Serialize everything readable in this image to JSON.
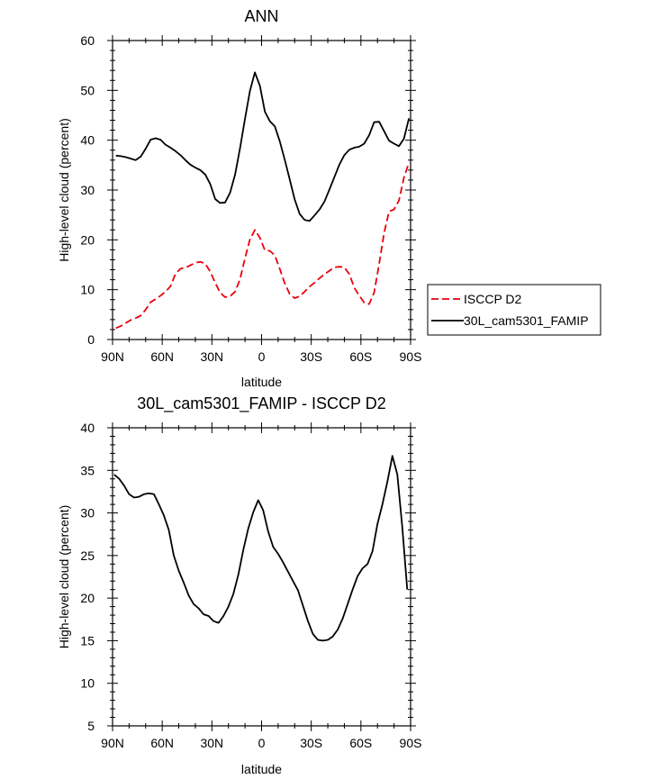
{
  "chart_data": [
    {
      "type": "line",
      "title": "ANN",
      "xlabel": "latitude",
      "ylabel": "High-level cloud (percent)",
      "xlim": [
        90,
        -90
      ],
      "ylim": [
        0,
        60
      ],
      "xticks": [
        90,
        60,
        30,
        0,
        -30,
        -60,
        -90
      ],
      "xtick_labels": [
        "90N",
        "60N",
        "30N",
        "0",
        "30S",
        "60S",
        "90S"
      ],
      "yticks": [
        0,
        10,
        20,
        30,
        40,
        50,
        60
      ],
      "ytick_labels": [
        "0",
        "10",
        "20",
        "30",
        "40",
        "50",
        "60"
      ],
      "legend": {
        "position": "right",
        "entries": [
          "ISCCP D2",
          "30L_cam5301_FAMIP"
        ]
      },
      "series": [
        {
          "name": "ISCCP D2",
          "color": "#e8000b",
          "style": "dashed",
          "x": [
            88,
            85,
            82,
            79,
            76,
            73,
            70,
            67,
            64,
            61,
            58,
            55,
            52,
            49,
            46,
            43,
            40,
            37,
            34,
            31,
            28,
            25,
            22,
            19,
            16,
            13,
            10,
            7,
            4,
            1,
            -2,
            -5,
            -8,
            -11,
            -14,
            -17,
            -20,
            -23,
            -26,
            -29,
            -32,
            -35,
            -38,
            -41,
            -44,
            -47,
            -50,
            -53,
            -56,
            -59,
            -62,
            -65,
            -68,
            -71,
            -74,
            -77,
            -80,
            -83,
            -86,
            -89
          ],
          "y": [
            2.3,
            2.7,
            3.3,
            3.9,
            4.3,
            4.8,
            6.0,
            7.5,
            8.1,
            8.8,
            9.6,
            10.7,
            13.2,
            14.2,
            14.4,
            14.9,
            15.4,
            15.6,
            15.2,
            13.6,
            11.4,
            9.4,
            8.5,
            8.7,
            9.6,
            12.1,
            16.3,
            20.1,
            22.0,
            20.4,
            17.9,
            17.8,
            16.9,
            14.2,
            11.3,
            9.1,
            8.3,
            8.7,
            9.6,
            10.6,
            11.4,
            12.3,
            13.1,
            13.8,
            14.5,
            14.6,
            14.5,
            13.1,
            10.4,
            8.8,
            7.4,
            7.1,
            9.4,
            15.2,
            21.4,
            25.7,
            26.1,
            27.9,
            32.5,
            35.5
          ]
        },
        {
          "name": "30L_cam5301_FAMIP",
          "color": "#000000",
          "style": "solid",
          "x": [
            88,
            85,
            82,
            79,
            76,
            73,
            70,
            67,
            64,
            61,
            58,
            55,
            52,
            49,
            46,
            43,
            40,
            37,
            34,
            31,
            28,
            25,
            22,
            19,
            16,
            13,
            10,
            7,
            4,
            1,
            -2,
            -5,
            -8,
            -11,
            -14,
            -17,
            -20,
            -23,
            -26,
            -29,
            -32,
            -35,
            -38,
            -41,
            -44,
            -47,
            -50,
            -53,
            -56,
            -59,
            -62,
            -65,
            -68,
            -71,
            -74,
            -77,
            -80,
            -83,
            -86,
            -89
          ],
          "y": [
            36.9,
            36.8,
            36.6,
            36.3,
            36.0,
            36.7,
            38.3,
            40.1,
            40.4,
            40.1,
            39.1,
            38.5,
            37.8,
            37.0,
            36.0,
            35.1,
            34.5,
            34.0,
            33.1,
            31.2,
            28.2,
            27.4,
            27.5,
            29.5,
            33.1,
            38.4,
            44.3,
            49.9,
            53.6,
            50.9,
            45.7,
            43.8,
            42.8,
            39.8,
            36.1,
            32.1,
            28.1,
            25.2,
            24.0,
            23.8,
            24.9,
            26.1,
            27.7,
            30.1,
            32.6,
            35.1,
            37.0,
            38.1,
            38.5,
            38.7,
            39.3,
            41.0,
            43.6,
            43.7,
            41.8,
            39.9,
            39.3,
            38.8,
            40.3,
            44.4
          ]
        }
      ]
    },
    {
      "type": "line",
      "title": "30L_cam5301_FAMIP - ISCCP D2",
      "xlabel": "latitude",
      "ylabel": "High-level cloud (percent)",
      "xlim": [
        90,
        -90
      ],
      "ylim": [
        5,
        40
      ],
      "xticks": [
        90,
        60,
        30,
        0,
        -30,
        -60,
        -90
      ],
      "xtick_labels": [
        "90N",
        "60N",
        "30N",
        "0",
        "30S",
        "60S",
        "90S"
      ],
      "yticks": [
        5,
        10,
        15,
        20,
        25,
        30,
        35,
        40
      ],
      "ytick_labels": [
        "5",
        "10",
        "15",
        "20",
        "25",
        "30",
        "35",
        "40"
      ],
      "series": [
        {
          "name": "30L_cam5301_FAMIP - ISCCP D2",
          "color": "#000000",
          "style": "solid",
          "x": [
            89,
            86,
            83,
            80,
            77,
            74,
            71,
            68,
            65,
            62,
            59,
            56,
            53,
            50,
            47,
            44,
            41,
            38,
            35,
            32,
            29,
            26,
            23,
            20,
            17,
            14,
            11,
            8,
            5,
            2,
            -1,
            -4,
            -7,
            -10,
            -13,
            -16,
            -19,
            -22,
            -25,
            -28,
            -31,
            -34,
            -37,
            -40,
            -43,
            -46,
            -49,
            -52,
            -55,
            -58,
            -61,
            -64,
            -67,
            -70,
            -73,
            -76,
            -79,
            -82,
            -85,
            -88
          ],
          "y": [
            34.5,
            34.0,
            33.2,
            32.2,
            31.8,
            31.9,
            32.2,
            32.3,
            32.2,
            31.0,
            29.7,
            28.0,
            25.0,
            23.2,
            21.8,
            20.3,
            19.3,
            18.8,
            18.1,
            17.9,
            17.3,
            17.1,
            17.9,
            19.0,
            20.5,
            22.8,
            25.7,
            28.2,
            30.1,
            31.5,
            30.3,
            27.8,
            26.0,
            25.2,
            24.2,
            23.1,
            22.0,
            20.9,
            19.1,
            17.3,
            15.8,
            15.1,
            15.0,
            15.1,
            15.5,
            16.3,
            17.6,
            19.3,
            21.0,
            22.6,
            23.5,
            24.0,
            25.5,
            28.7,
            31.0,
            33.7,
            36.7,
            34.5,
            28.3,
            21.0
          ]
        }
      ]
    }
  ]
}
